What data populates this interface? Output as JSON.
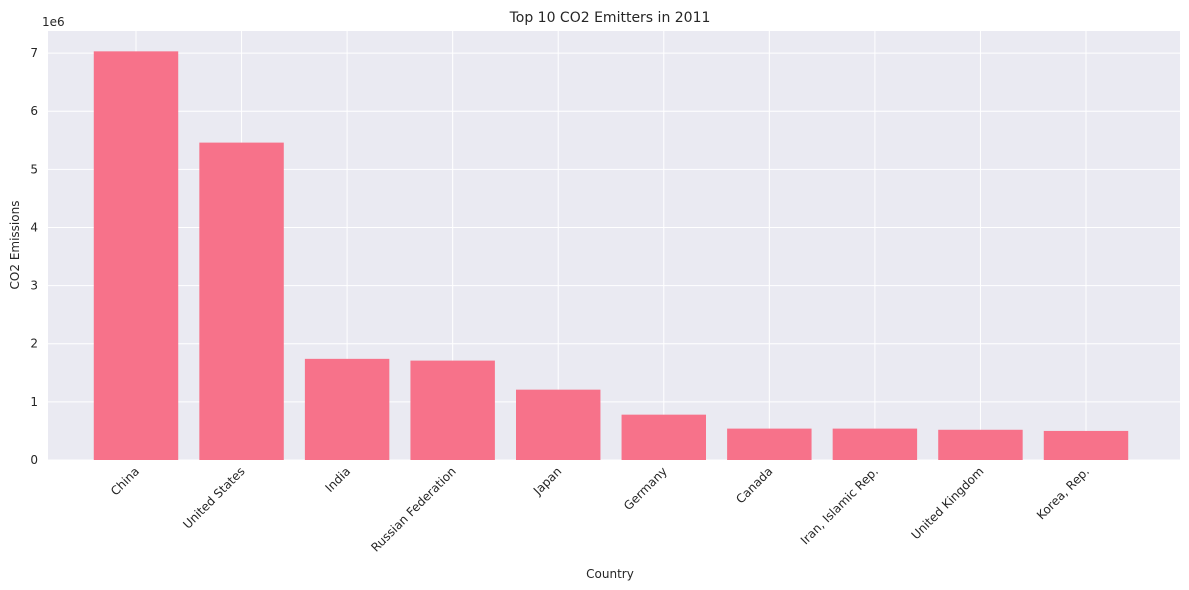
{
  "chart_data": {
    "type": "bar",
    "title": "Top 10 CO2 Emitters in 2011",
    "xlabel": "Country",
    "ylabel": "CO2 Emissions",
    "y_offset_label": "1e6",
    "categories": [
      "China",
      "United States",
      "India",
      "Russian Federation",
      "Japan",
      "Germany",
      "Canada",
      "Iran, Islamic Rep.",
      "United Kingdom",
      "Korea, Rep."
    ],
    "values": [
      7030000,
      5460000,
      1740000,
      1710000,
      1210000,
      780000,
      540000,
      540000,
      520000,
      500000
    ],
    "ylim": [
      0,
      7380000
    ],
    "yticks": [
      0,
      1000000,
      2000000,
      3000000,
      4000000,
      5000000,
      6000000,
      7000000
    ],
    "ytick_labels": [
      "0",
      "1",
      "2",
      "3",
      "4",
      "5",
      "6",
      "7"
    ],
    "grid": true,
    "colors": {
      "bar": "#f7728a",
      "plot_bg": "#eaeaf2",
      "grid": "#ffffff"
    }
  }
}
